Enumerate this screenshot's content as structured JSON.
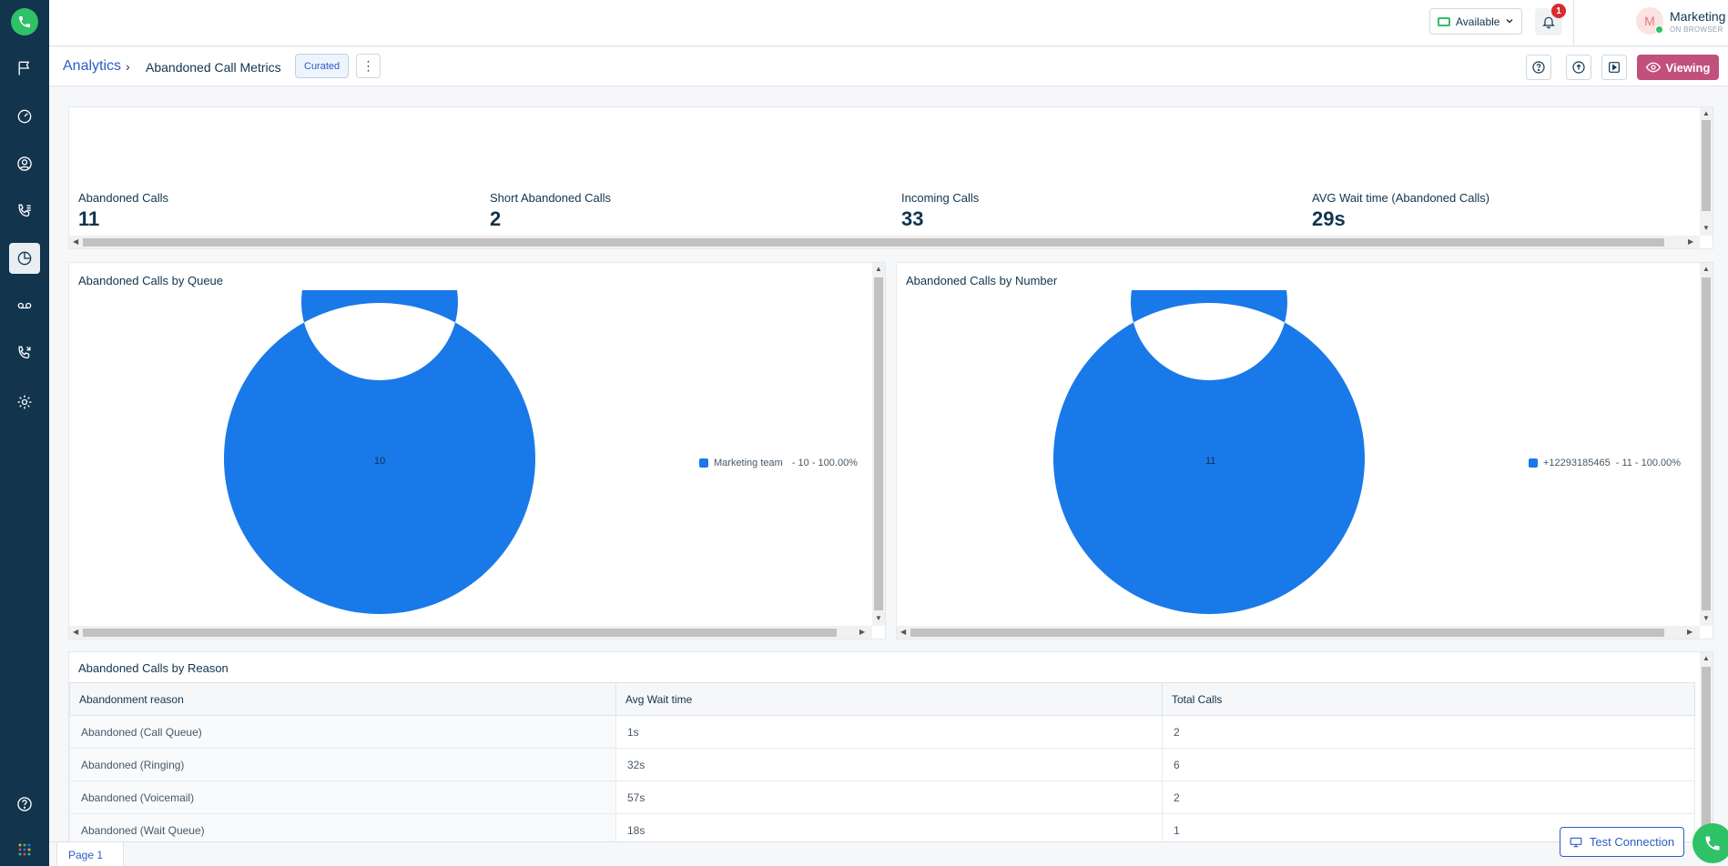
{
  "header": {
    "status": "Available",
    "notification_count": "1",
    "user_initial": "M",
    "user_name": "Marketing Team",
    "user_sub": "ON BROWSER"
  },
  "subheader": {
    "breadcrumb_link": "Analytics",
    "breadcrumb_sep": "›",
    "title": "Abandoned Call Metrics",
    "tag": "Curated",
    "more": "⋮",
    "viewing_label": "Viewing"
  },
  "kpis": [
    {
      "label": "Abandoned Calls",
      "value": "11"
    },
    {
      "label": "Short Abandoned Calls",
      "value": "2"
    },
    {
      "label": "Incoming Calls",
      "value": "33"
    },
    {
      "label": "AVG Wait time (Abandoned Calls)",
      "value": "29s"
    }
  ],
  "queue_chart": {
    "title": "Abandoned Calls by Queue",
    "center_label": "10",
    "legend_name": "Marketing team",
    "legend_detail": "- 10 - 100.00%"
  },
  "number_chart": {
    "title": "Abandoned Calls by Number",
    "center_label": "11",
    "legend_name": "+12293185465",
    "legend_detail": "- 11 - 100.00%"
  },
  "chart_data": [
    {
      "type": "pie",
      "title": "Abandoned Calls by Queue",
      "categories": [
        "Marketing team"
      ],
      "values": [
        10
      ],
      "percentages": [
        100.0
      ],
      "donut": true,
      "legend": "right"
    },
    {
      "type": "pie",
      "title": "Abandoned Calls by Number",
      "categories": [
        "+12293185465"
      ],
      "values": [
        11
      ],
      "percentages": [
        100.0
      ],
      "donut": true,
      "legend": "right"
    }
  ],
  "reason_table": {
    "title": "Abandoned Calls by Reason",
    "columns": [
      "Abandonment reason",
      "Avg Wait time",
      "Total Calls"
    ],
    "rows": [
      [
        "Abandoned (Call Queue)",
        "1s",
        "2"
      ],
      [
        "Abandoned (Ringing)",
        "32s",
        "6"
      ],
      [
        "Abandoned (Voicemail)",
        "57s",
        "2"
      ],
      [
        "Abandoned (Wait Queue)",
        "18s",
        "1"
      ]
    ]
  },
  "footer": {
    "page_tab": "Page 1",
    "test_connection": "Test Connection"
  },
  "colors": {
    "sidebar": "#12344d",
    "donut": "#1a79e8",
    "accent": "#2c5cc5",
    "viewing": "#c2507c",
    "green": "#2fc166"
  }
}
